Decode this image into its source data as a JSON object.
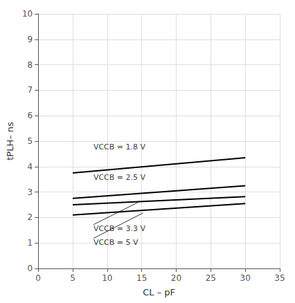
{
  "chart_data": {
    "type": "line",
    "title": "",
    "xlabel": "CL – pF",
    "ylabel": "tPLH– ns",
    "xlim": [
      0,
      35
    ],
    "ylim": [
      0,
      10
    ],
    "xticks": [
      0,
      5,
      10,
      15,
      20,
      25,
      30,
      35
    ],
    "yticks": [
      0,
      1,
      2,
      3,
      4,
      5,
      6,
      7,
      8,
      9,
      10
    ],
    "grid": true,
    "series": [
      {
        "color": "#000000",
        "x": [
          5,
          30
        ],
        "values": [
          3.75,
          4.35
        ]
      },
      {
        "color": "#000000",
        "x": [
          5,
          30
        ],
        "values": [
          2.75,
          3.25
        ]
      },
      {
        "color": "#000000",
        "x": [
          5,
          30
        ],
        "values": [
          2.5,
          2.82
        ]
      },
      {
        "color": "#000000",
        "x": [
          5,
          30
        ],
        "values": [
          2.1,
          2.55
        ]
      }
    ],
    "annotations": [
      {
        "text": "VCCB = 1.8 V",
        "x": 8.0,
        "y": 4.62
      },
      {
        "text": "VCCB = 2.5 V",
        "x": 8.0,
        "y": 3.42
      },
      {
        "text": "VCCB = 3.3 V",
        "x": 8.0,
        "y": 1.72,
        "arrow_to": [
          14.5,
          2.6
        ]
      },
      {
        "text": "VCCB = 5 V",
        "x": 8.0,
        "y": 1.18,
        "arrow_to": [
          15.2,
          2.18
        ]
      }
    ]
  }
}
